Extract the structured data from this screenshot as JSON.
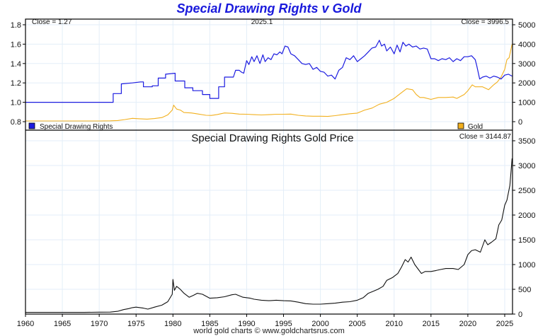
{
  "page": {
    "title": "Special Drawing Rights v Gold",
    "footer": "world gold charts © www.goldchartsrus.com",
    "colors": {
      "title": "#1a1adc",
      "sdr": "#1c1ce0",
      "gold": "#f2b01e",
      "gold_price": "#111111",
      "grid": "#e3eef8"
    }
  },
  "chart_data": [
    {
      "type": "line",
      "title": "Special Drawing Rights v Gold",
      "annotations": {
        "left_close": "Close = 1.27",
        "center": "2025.1",
        "right_close": "Close = 3996.5"
      },
      "x_ticks": [
        1960,
        1965,
        1970,
        1975,
        1980,
        1985,
        1990,
        1995,
        2000,
        2005,
        2010,
        2015,
        2020,
        2025
      ],
      "xlim": [
        1960,
        2026.3
      ],
      "y_left": {
        "ticks": [
          "1.8",
          "1.6",
          "1.4",
          "1.2",
          "1.0",
          "0.8"
        ],
        "lim": [
          0.8,
          1.8
        ]
      },
      "y_right": {
        "ticks": [
          "5000",
          "4000",
          "3000",
          "2000",
          "1000",
          "0"
        ],
        "lim": [
          0,
          5000
        ]
      },
      "grid": true,
      "legend": [
        {
          "name": "Special Drawing Rights",
          "color": "#1c1ce0",
          "placement": "bottom-left"
        },
        {
          "name": "Gold",
          "color": "#f2b01e",
          "placement": "bottom-right"
        }
      ],
      "series": [
        {
          "name": "Special Drawing Rights",
          "axis": "left",
          "color": "#1c1ce0",
          "x": [
            1960,
            1971.9,
            1971.9,
            1973.0,
            1973.0,
            1974.5,
            1975.6,
            1976.0,
            1976.0,
            1977.2,
            1977.2,
            1978.0,
            1978.0,
            1979.0,
            1979.0,
            1980.3,
            1980.3,
            1981.6,
            1981.6,
            1982.7,
            1982.7,
            1984.0,
            1984.0,
            1985.0,
            1985.0,
            1986.2,
            1986.2,
            1987.0,
            1987.0,
            1988.2,
            1988.5,
            1989.0,
            1989.3,
            1989.6,
            1990.0,
            1990.3,
            1990.7,
            1991.0,
            1991.4,
            1991.8,
            1992.2,
            1992.5,
            1992.9,
            1993.3,
            1993.7,
            1994.1,
            1994.5,
            1994.8,
            1995.2,
            1995.6,
            1996.0,
            1996.5,
            1997.0,
            1997.5,
            1998.0,
            1998.5,
            1999.0,
            1999.5,
            2000.0,
            2000.5,
            2001.0,
            2001.5,
            2002.0,
            2002.5,
            2003.0,
            2003.5,
            2004.0,
            2004.5,
            2005.0,
            2005.5,
            2006.0,
            2006.5,
            2007.0,
            2007.5,
            2008.0,
            2008.3,
            2008.7,
            2009.0,
            2009.5,
            2010.0,
            2010.4,
            2010.8,
            2011.2,
            2011.6,
            2012.0,
            2012.5,
            2013.0,
            2013.5,
            2014.0,
            2014.5,
            2015.0,
            2015.5,
            2016.0,
            2016.5,
            2017.0,
            2017.5,
            2018.0,
            2018.5,
            2019.0,
            2019.5,
            2020.0,
            2020.5,
            2021.0,
            2021.2,
            2021.6,
            2022.0,
            2022.5,
            2023.0,
            2023.5,
            2024.0,
            2024.5,
            2025.0,
            2025.5,
            2026.0
          ],
          "values": [
            1.0,
            1.0,
            1.09,
            1.09,
            1.19,
            1.2,
            1.21,
            1.21,
            1.16,
            1.16,
            1.17,
            1.17,
            1.25,
            1.25,
            1.29,
            1.3,
            1.22,
            1.22,
            1.15,
            1.15,
            1.12,
            1.12,
            1.08,
            1.08,
            1.04,
            1.04,
            1.16,
            1.16,
            1.26,
            1.26,
            1.33,
            1.33,
            1.31,
            1.3,
            1.43,
            1.39,
            1.47,
            1.42,
            1.48,
            1.4,
            1.49,
            1.42,
            1.46,
            1.44,
            1.5,
            1.49,
            1.52,
            1.5,
            1.58,
            1.57,
            1.5,
            1.48,
            1.44,
            1.4,
            1.39,
            1.4,
            1.34,
            1.36,
            1.32,
            1.31,
            1.27,
            1.28,
            1.24,
            1.33,
            1.36,
            1.46,
            1.44,
            1.48,
            1.42,
            1.45,
            1.48,
            1.52,
            1.56,
            1.57,
            1.64,
            1.58,
            1.6,
            1.53,
            1.57,
            1.5,
            1.59,
            1.52,
            1.62,
            1.58,
            1.6,
            1.57,
            1.58,
            1.55,
            1.56,
            1.55,
            1.45,
            1.45,
            1.43,
            1.45,
            1.44,
            1.46,
            1.42,
            1.45,
            1.43,
            1.47,
            1.47,
            1.48,
            1.44,
            1.38,
            1.24,
            1.26,
            1.27,
            1.25,
            1.27,
            1.26,
            1.24,
            1.28,
            1.29,
            1.27
          ]
        },
        {
          "name": "Gold",
          "axis": "right",
          "color": "#f2b01e",
          "x": [
            1960,
            1968,
            1970,
            1971.5,
            1972.5,
            1973.5,
            1974.5,
            1975.5,
            1976.5,
            1977.5,
            1978.5,
            1979.3,
            1979.9,
            1980.1,
            1980.5,
            1981.0,
            1981.5,
            1982.5,
            1983.2,
            1984.5,
            1985.2,
            1986.0,
            1987.0,
            1988.0,
            1989.0,
            1990.0,
            1991.0,
            1992.0,
            1993.0,
            1994.0,
            1995.0,
            1996.0,
            1997.0,
            1998.0,
            1999.0,
            2000.0,
            2001.0,
            2002.0,
            2003.0,
            2004.0,
            2005.0,
            2006.0,
            2007.0,
            2008.0,
            2009.0,
            2010.0,
            2011.0,
            2011.7,
            2012.5,
            2013.0,
            2013.5,
            2014.0,
            2015.0,
            2016.0,
            2017.0,
            2018.0,
            2018.5,
            2019.5,
            2020.0,
            2020.6,
            2021.0,
            2022.0,
            2022.8,
            2023.5,
            2024.0,
            2024.5,
            2025.0,
            2025.3,
            2025.6,
            2026.0
          ],
          "values": [
            35,
            37,
            36,
            43,
            60,
            110,
            170,
            150,
            130,
            160,
            210,
            350,
            600,
            850,
            650,
            600,
            470,
            450,
            410,
            330,
            320,
            370,
            450,
            430,
            390,
            385,
            360,
            345,
            360,
            385,
            385,
            390,
            330,
            295,
            280,
            280,
            270,
            310,
            360,
            410,
            440,
            600,
            700,
            900,
            1000,
            1200,
            1500,
            1700,
            1650,
            1400,
            1250,
            1250,
            1150,
            1250,
            1250,
            1270,
            1200,
            1400,
            1600,
            1900,
            1800,
            1800,
            1650,
            1900,
            2050,
            2300,
            2700,
            3200,
            3300,
            3996.5
          ]
        }
      ]
    },
    {
      "type": "line",
      "title": "Special Drawing Rights Gold Price",
      "annotations": {
        "right_close": "Close = 3144.87"
      },
      "x_ticks": [
        1960,
        1965,
        1970,
        1975,
        1980,
        1985,
        1990,
        1995,
        2000,
        2005,
        2010,
        2015,
        2020,
        2025
      ],
      "xlim": [
        1960,
        2026.3
      ],
      "y_right": {
        "ticks": [
          "3500",
          "3000",
          "2500",
          "2000",
          "1500",
          "1000",
          "500",
          "0"
        ],
        "lim": [
          0,
          3500
        ]
      },
      "grid": true,
      "series": [
        {
          "name": "Special Drawing Rights Gold Price",
          "axis": "right",
          "color": "#111111",
          "x": [
            1960,
            1968,
            1970,
            1971.5,
            1972.5,
            1973.3,
            1974.0,
            1974.5,
            1975.0,
            1976.0,
            1976.6,
            1977.5,
            1978.5,
            1979.3,
            1979.9,
            1980.0,
            1980.2,
            1980.5,
            1981.0,
            1981.5,
            1982.2,
            1982.8,
            1983.3,
            1984.0,
            1985.0,
            1986.0,
            1987.0,
            1988.0,
            1988.5,
            1989.5,
            1990.5,
            1991.0,
            1992.0,
            1993.0,
            1994.0,
            1995.0,
            1996.0,
            1997.0,
            1998.0,
            1999.0,
            2000.0,
            2001.0,
            2002.0,
            2003.0,
            2004.0,
            2005.0,
            2005.8,
            2006.5,
            2007.0,
            2007.8,
            2008.5,
            2009.0,
            2009.8,
            2010.5,
            2011.0,
            2011.5,
            2011.9,
            2012.3,
            2012.8,
            2013.3,
            2013.7,
            2014.2,
            2015.0,
            2015.7,
            2016.3,
            2017.0,
            2018.0,
            2018.7,
            2019.5,
            2020.0,
            2020.5,
            2021.0,
            2021.7,
            2022.3,
            2022.7,
            2023.2,
            2023.8,
            2024.2,
            2024.6,
            2025.0,
            2025.3,
            2025.7,
            2026.0
          ],
          "values": [
            35,
            35,
            38,
            40,
            55,
            90,
            110,
            130,
            140,
            120,
            100,
            140,
            180,
            250,
            400,
            700,
            480,
            560,
            500,
            420,
            340,
            380,
            420,
            400,
            320,
            330,
            350,
            390,
            400,
            340,
            320,
            300,
            280,
            270,
            280,
            270,
            265,
            240,
            210,
            200,
            200,
            210,
            220,
            240,
            250,
            280,
            330,
            420,
            450,
            500,
            560,
            680,
            740,
            820,
            950,
            1100,
            1050,
            1150,
            1000,
            900,
            820,
            860,
            860,
            880,
            900,
            920,
            920,
            900,
            1000,
            1200,
            1280,
            1300,
            1250,
            1500,
            1400,
            1450,
            1520,
            1800,
            1900,
            2200,
            2300,
            2600,
            3144.87
          ]
        }
      ]
    }
  ]
}
